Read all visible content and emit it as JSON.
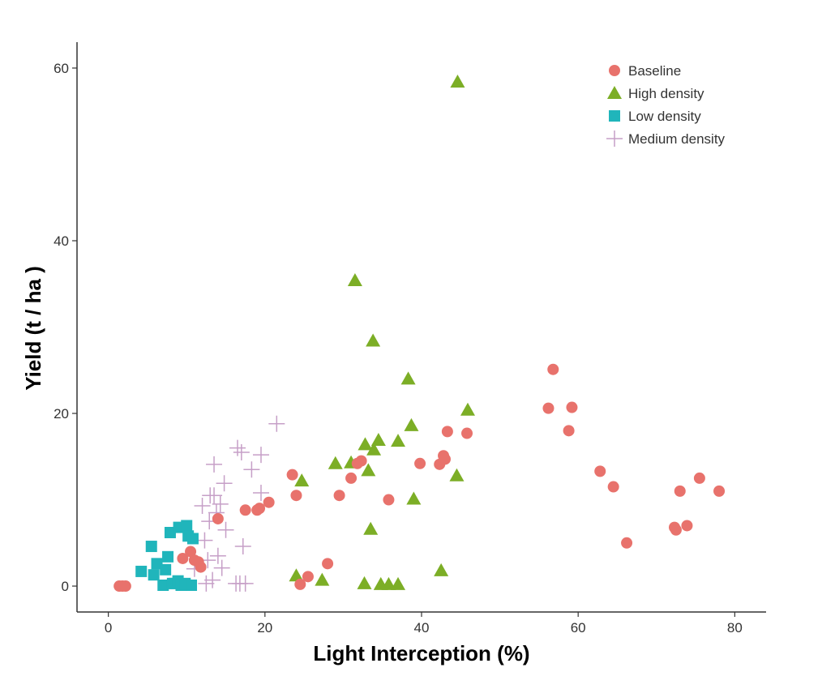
{
  "chart_data": {
    "type": "scatter",
    "xlabel": "Light Interception (%)",
    "ylabel": "Yield (t / ha )",
    "xlim": [
      -4,
      84
    ],
    "ylim": [
      -3,
      63
    ],
    "xticks": [
      0,
      20,
      40,
      60,
      80
    ],
    "yticks": [
      0,
      20,
      40,
      60
    ],
    "grid": false,
    "legend_position": "top-right",
    "series": [
      {
        "name": "Baseline",
        "marker": "circle",
        "color": "#E8726C",
        "points": [
          [
            1.4,
            0.0
          ],
          [
            1.8,
            0.0
          ],
          [
            2.2,
            0.0
          ],
          [
            9.5,
            3.2
          ],
          [
            10.5,
            4.0
          ],
          [
            11.0,
            3.0
          ],
          [
            11.5,
            2.8
          ],
          [
            11.8,
            2.2
          ],
          [
            14.0,
            7.8
          ],
          [
            17.5,
            8.8
          ],
          [
            19.0,
            8.8
          ],
          [
            19.3,
            9.0
          ],
          [
            20.5,
            9.7
          ],
          [
            23.5,
            12.9
          ],
          [
            24.0,
            10.5
          ],
          [
            24.5,
            0.2
          ],
          [
            25.5,
            1.1
          ],
          [
            28.0,
            2.6
          ],
          [
            29.5,
            10.5
          ],
          [
            31.0,
            12.5
          ],
          [
            31.8,
            14.2
          ],
          [
            32.3,
            14.5
          ],
          [
            35.8,
            10.0
          ],
          [
            39.8,
            14.2
          ],
          [
            42.3,
            14.1
          ],
          [
            42.8,
            15.1
          ],
          [
            43.0,
            14.7
          ],
          [
            43.3,
            17.9
          ],
          [
            45.8,
            17.7
          ],
          [
            56.2,
            20.6
          ],
          [
            56.8,
            25.1
          ],
          [
            58.8,
            18.0
          ],
          [
            59.2,
            20.7
          ],
          [
            62.8,
            13.3
          ],
          [
            64.5,
            11.5
          ],
          [
            66.2,
            5.0
          ],
          [
            72.3,
            6.8
          ],
          [
            72.5,
            6.5
          ],
          [
            73.0,
            11.0
          ],
          [
            73.9,
            7.0
          ],
          [
            75.5,
            12.5
          ],
          [
            78.0,
            11.0
          ]
        ]
      },
      {
        "name": "High density",
        "marker": "triangle",
        "color": "#7CAE26",
        "points": [
          [
            24.0,
            1.2
          ],
          [
            24.7,
            12.2
          ],
          [
            27.3,
            0.7
          ],
          [
            29.0,
            14.2
          ],
          [
            31.0,
            14.3
          ],
          [
            31.5,
            35.4
          ],
          [
            32.7,
            0.3
          ],
          [
            32.8,
            16.4
          ],
          [
            33.2,
            13.4
          ],
          [
            33.5,
            6.6
          ],
          [
            33.8,
            28.4
          ],
          [
            33.9,
            15.8
          ],
          [
            34.5,
            16.9
          ],
          [
            34.8,
            0.2
          ],
          [
            35.8,
            0.2
          ],
          [
            37.0,
            0.2
          ],
          [
            37.0,
            16.8
          ],
          [
            38.3,
            24.0
          ],
          [
            38.7,
            18.6
          ],
          [
            39.0,
            10.1
          ],
          [
            42.5,
            1.8
          ],
          [
            44.5,
            12.8
          ],
          [
            44.6,
            58.4
          ],
          [
            45.9,
            20.4
          ]
        ]
      },
      {
        "name": "Low density",
        "marker": "square",
        "color": "#20B5BB",
        "points": [
          [
            4.2,
            1.7
          ],
          [
            5.5,
            4.6
          ],
          [
            5.8,
            1.3
          ],
          [
            6.2,
            2.6
          ],
          [
            7.0,
            0.1
          ],
          [
            7.3,
            1.9
          ],
          [
            7.6,
            3.4
          ],
          [
            7.9,
            6.2
          ],
          [
            8.2,
            0.3
          ],
          [
            8.5,
            0.3
          ],
          [
            8.9,
            0.6
          ],
          [
            9.0,
            6.8
          ],
          [
            9.3,
            0.1
          ],
          [
            9.8,
            0.3
          ],
          [
            10.0,
            7.0
          ],
          [
            10.2,
            5.8
          ],
          [
            10.6,
            0.1
          ],
          [
            10.8,
            5.5
          ]
        ]
      },
      {
        "name": "Medium density",
        "marker": "cross",
        "color": "#C69FC7",
        "points": [
          [
            11.0,
            2.0
          ],
          [
            12.0,
            9.3
          ],
          [
            12.3,
            5.3
          ],
          [
            12.5,
            0.3
          ],
          [
            12.7,
            3.0
          ],
          [
            12.9,
            7.5
          ],
          [
            13.0,
            10.5
          ],
          [
            13.3,
            0.7
          ],
          [
            13.5,
            14.1
          ],
          [
            13.5,
            10.5
          ],
          [
            13.8,
            8.5
          ],
          [
            14.0,
            3.5
          ],
          [
            14.3,
            9.5
          ],
          [
            14.5,
            2.1
          ],
          [
            14.8,
            11.9
          ],
          [
            15.0,
            6.5
          ],
          [
            16.3,
            0.3
          ],
          [
            16.5,
            16.0
          ],
          [
            16.8,
            0.3
          ],
          [
            17.0,
            15.5
          ],
          [
            17.2,
            4.6
          ],
          [
            17.5,
            0.3
          ],
          [
            18.3,
            13.5
          ],
          [
            19.5,
            15.2
          ],
          [
            19.5,
            10.8
          ],
          [
            21.5,
            18.8
          ]
        ]
      }
    ]
  }
}
